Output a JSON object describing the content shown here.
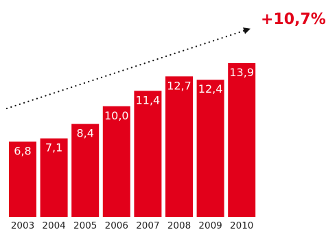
{
  "chart_data": {
    "type": "bar",
    "categories": [
      "2003",
      "2004",
      "2005",
      "2006",
      "2007",
      "2008",
      "2009",
      "2010"
    ],
    "values": [
      6.8,
      7.1,
      8.4,
      10.0,
      11.4,
      12.7,
      12.4,
      13.9
    ],
    "value_labels": [
      "6,8",
      "7,1",
      "8,4",
      "10,0",
      "11,4",
      "12,7",
      "12,4",
      "13,9"
    ],
    "growth_annotation": "+10,7%",
    "title": "",
    "xlabel": "",
    "ylabel": "",
    "ylim": [
      0,
      13.9
    ],
    "grid": false,
    "legend": "none"
  },
  "colors": {
    "bar": "#e2001a",
    "annotation": "#e2001a",
    "trend_arrow": "#111111",
    "tick_text": "#222222",
    "bar_text": "#ffffff"
  }
}
